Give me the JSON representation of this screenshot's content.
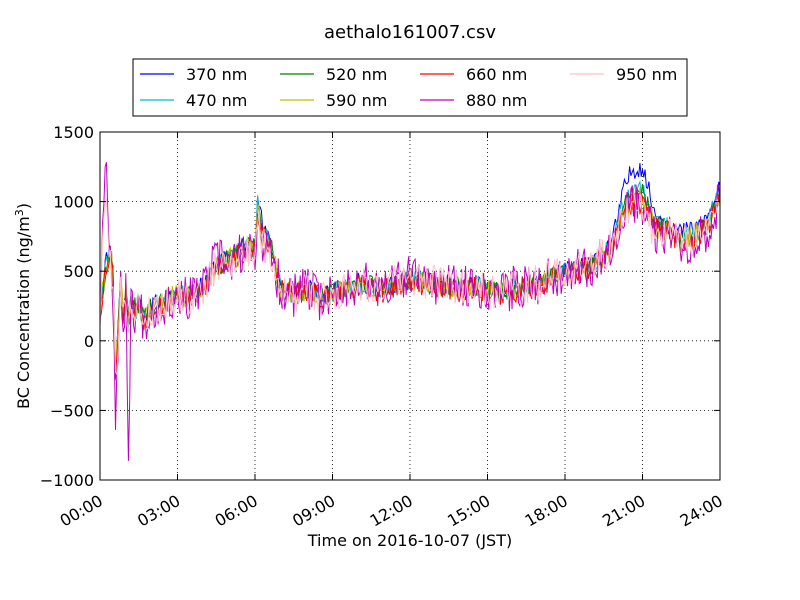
{
  "chart_data": {
    "type": "line",
    "title": "aethalo161007.csv",
    "xlabel": "Time on 2016-10-07 (JST)",
    "ylabel_main": "BC Concentration (ng/m",
    "ylabel_sup": "3",
    "ylabel_tail": ")",
    "xlim": [
      0,
      24
    ],
    "ylim": [
      -1000,
      1500
    ],
    "grid": true,
    "grid_style": "dotted",
    "legend_position": "top",
    "x_ticks": [
      0,
      3,
      6,
      9,
      12,
      15,
      18,
      21,
      24
    ],
    "x_tick_labels": [
      "00:00",
      "03:00",
      "06:00",
      "09:00",
      "12:00",
      "15:00",
      "18:00",
      "21:00",
      "24:00"
    ],
    "y_ticks": [
      -1000,
      -500,
      0,
      500,
      1000,
      1500
    ],
    "y_tick_labels": [
      "−1000",
      "−500",
      "0",
      "500",
      "1000",
      "1500"
    ],
    "anchor_hours": [
      0,
      0.2,
      0.4,
      0.5,
      0.6,
      0.8,
      0.9,
      1.0,
      1.1,
      1.2,
      1.4,
      1.5,
      1.7,
      2,
      2.5,
      3,
      3.5,
      4,
      4.5,
      5,
      5.5,
      6,
      6.1,
      6.3,
      6.6,
      7,
      7.5,
      8,
      8.5,
      9,
      9.5,
      10,
      10.5,
      11,
      11.5,
      12,
      12.5,
      13,
      13.5,
      14,
      14.5,
      15,
      15.5,
      16,
      16.5,
      17,
      17.5,
      18,
      18.5,
      19,
      19.5,
      19.8,
      20,
      20.3,
      20.6,
      21,
      21.5,
      22,
      22.5,
      23,
      23.5,
      24
    ],
    "series": [
      {
        "name": "370 nm",
        "color": "#0000ff",
        "amp": 70,
        "seed": 11,
        "anchors": [
          250,
          550,
          700,
          500,
          -200,
          450,
          200,
          400,
          150,
          300,
          230,
          280,
          180,
          250,
          300,
          350,
          330,
          400,
          550,
          600,
          680,
          700,
          1100,
          800,
          700,
          400,
          350,
          380,
          330,
          350,
          380,
          420,
          400,
          380,
          420,
          450,
          430,
          420,
          400,
          380,
          400,
          380,
          350,
          380,
          400,
          420,
          480,
          500,
          520,
          550,
          650,
          700,
          850,
          1100,
          1230,
          1250,
          900,
          850,
          780,
          800,
          880,
          1100
        ]
      },
      {
        "name": "470 nm",
        "color": "#00bfbf",
        "amp": 75,
        "seed": 23,
        "anchors": [
          230,
          520,
          680,
          480,
          -220,
          430,
          190,
          390,
          140,
          290,
          220,
          270,
          175,
          240,
          290,
          340,
          320,
          390,
          540,
          590,
          660,
          680,
          1000,
          780,
          690,
          390,
          345,
          375,
          325,
          345,
          375,
          415,
          395,
          375,
          415,
          445,
          425,
          415,
          395,
          375,
          395,
          375,
          345,
          375,
          395,
          415,
          470,
          490,
          510,
          540,
          630,
          680,
          820,
          1000,
          1080,
          1100,
          850,
          810,
          750,
          770,
          850,
          1050
        ]
      },
      {
        "name": "520 nm",
        "color": "#008000",
        "amp": 80,
        "seed": 37,
        "anchors": [
          220,
          510,
          670,
          470,
          -230,
          420,
          185,
          385,
          135,
          285,
          215,
          265,
          170,
          235,
          285,
          335,
          315,
          385,
          535,
          585,
          650,
          670,
          980,
          770,
          680,
          380,
          340,
          370,
          320,
          340,
          370,
          410,
          390,
          370,
          410,
          440,
          420,
          410,
          390,
          370,
          390,
          370,
          340,
          370,
          390,
          410,
          465,
          485,
          505,
          535,
          620,
          670,
          800,
          960,
          1040,
          1060,
          830,
          800,
          740,
          760,
          840,
          1030
        ]
      },
      {
        "name": "590 nm",
        "color": "#bfbf00",
        "amp": 85,
        "seed": 41,
        "anchors": [
          210,
          500,
          660,
          460,
          -240,
          410,
          180,
          380,
          130,
          280,
          210,
          260,
          165,
          230,
          280,
          330,
          310,
          380,
          530,
          580,
          640,
          660,
          960,
          760,
          670,
          375,
          335,
          365,
          315,
          335,
          365,
          405,
          385,
          365,
          405,
          435,
          415,
          405,
          385,
          365,
          385,
          365,
          335,
          365,
          385,
          405,
          460,
          480,
          500,
          530,
          610,
          660,
          790,
          940,
          1000,
          1030,
          810,
          790,
          730,
          750,
          830,
          1010
        ]
      },
      {
        "name": "660 nm",
        "color": "#ff0000",
        "amp": 90,
        "seed": 53,
        "anchors": [
          200,
          490,
          650,
          450,
          -250,
          400,
          175,
          375,
          125,
          275,
          205,
          255,
          160,
          225,
          275,
          325,
          305,
          375,
          525,
          575,
          630,
          650,
          940,
          750,
          660,
          370,
          330,
          360,
          310,
          330,
          360,
          400,
          380,
          360,
          400,
          430,
          410,
          400,
          380,
          360,
          380,
          360,
          330,
          360,
          380,
          400,
          455,
          475,
          495,
          525,
          600,
          650,
          780,
          920,
          970,
          1000,
          800,
          780,
          720,
          740,
          820,
          990
        ]
      },
      {
        "name": "880 nm",
        "color": "#bf00bf",
        "amp": 160,
        "seed": 67,
        "anchors": [
          180,
          1400,
          650,
          300,
          -500,
          350,
          100,
          380,
          -800,
          250,
          200,
          250,
          150,
          220,
          270,
          320,
          300,
          380,
          600,
          550,
          620,
          640,
          900,
          700,
          600,
          380,
          320,
          380,
          300,
          330,
          380,
          420,
          400,
          380,
          420,
          450,
          430,
          420,
          400,
          380,
          400,
          380,
          340,
          380,
          400,
          420,
          470,
          490,
          520,
          550,
          620,
          680,
          800,
          950,
          1000,
          950,
          750,
          760,
          700,
          720,
          800,
          1000
        ]
      },
      {
        "name": "950 nm",
        "color": "#ffc0cb",
        "amp": 130,
        "seed": 79,
        "anchors": [
          170,
          1100,
          600,
          350,
          -300,
          380,
          120,
          360,
          100,
          260,
          200,
          260,
          150,
          220,
          270,
          320,
          300,
          370,
          520,
          570,
          620,
          640,
          880,
          720,
          620,
          370,
          320,
          370,
          300,
          330,
          370,
          420,
          400,
          380,
          420,
          450,
          430,
          420,
          400,
          380,
          400,
          380,
          340,
          380,
          400,
          420,
          470,
          490,
          520,
          550,
          620,
          680,
          800,
          920,
          980,
          950,
          760,
          770,
          710,
          730,
          810,
          1010
        ]
      }
    ]
  }
}
